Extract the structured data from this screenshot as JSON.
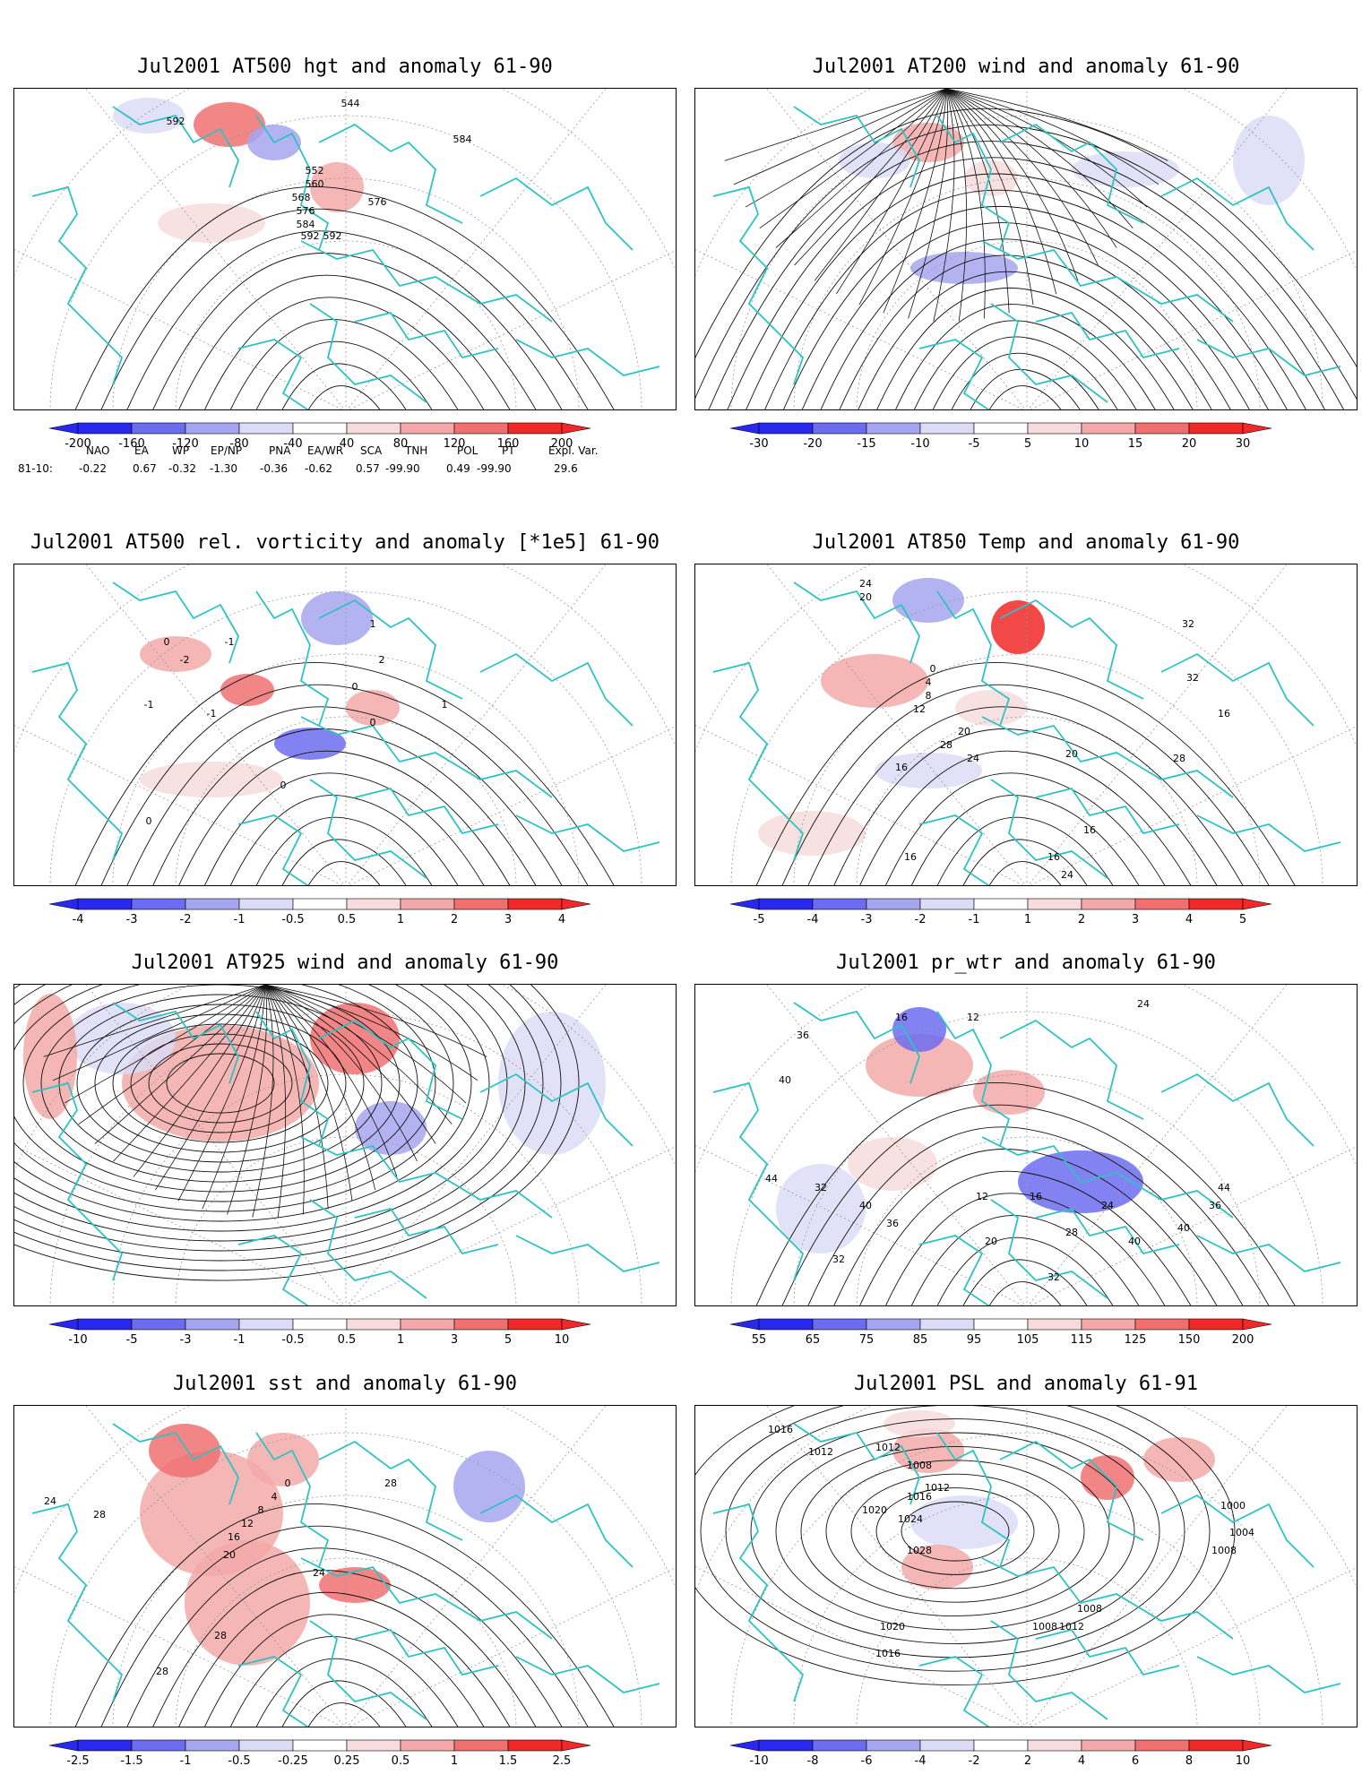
{
  "colors": {
    "coast": "#2ec3c3",
    "contour": "#111111",
    "blue_strong": "#2828f0",
    "blue_mid": "#6c6cf0",
    "blue_light": "#a6a6f0",
    "blue_pale": "#dcdcf6",
    "red_pale": "#f6dcdc",
    "red_light": "#f3a9a9",
    "red_mid": "#f07070",
    "red_strong": "#f02828"
  },
  "panels": [
    {
      "title": "Jul2001 AT500 hgt and anomaly 61-90",
      "colorbar": [
        "-200",
        "-160",
        "-120",
        "-80",
        "-40",
        "40",
        "80",
        "120",
        "160",
        "200"
      ],
      "contour_labels": [
        "592",
        "544",
        "552",
        "560",
        "568",
        "576",
        "584",
        "592",
        "576",
        "584",
        "592"
      ]
    },
    {
      "title": "Jul2001 AT200 wind and anomaly 61-90",
      "colorbar": [
        "-30",
        "-20",
        "-15",
        "-10",
        "-5",
        "5",
        "10",
        "15",
        "20",
        "30"
      ],
      "contour_labels": []
    },
    {
      "title": "Jul2001 AT500 rel. vorticity and anomaly [*1e5] 61-90",
      "colorbar": [
        "-4",
        "-3",
        "-2",
        "-1",
        "-0.5",
        "0.5",
        "1",
        "2",
        "3",
        "4"
      ],
      "contour_labels": [
        "0",
        "-1",
        "-2",
        "1",
        "2",
        "-1",
        "0",
        "-1",
        "0",
        "0",
        "0",
        "1"
      ]
    },
    {
      "title": "Jul2001 AT850 Temp and anomaly 61-90",
      "colorbar": [
        "-5",
        "-4",
        "-3",
        "-2",
        "-1",
        "1",
        "2",
        "3",
        "4",
        "5"
      ],
      "contour_labels": [
        "24",
        "20",
        "16",
        "12",
        "8",
        "4",
        "0",
        "20",
        "24",
        "28",
        "32",
        "16",
        "16",
        "16",
        "24",
        "20",
        "16",
        "28",
        "32"
      ]
    },
    {
      "title": "Jul2001 AT925 wind and anomaly 61-90",
      "colorbar": [
        "-10",
        "-5",
        "-3",
        "-1",
        "-0.5",
        "0.5",
        "1",
        "3",
        "5",
        "10"
      ],
      "contour_labels": []
    },
    {
      "title": "Jul2001 pr_wtr and anomaly 61-90",
      "colorbar": [
        "55",
        "65",
        "75",
        "85",
        "95",
        "105",
        "115",
        "125",
        "150",
        "200"
      ],
      "contour_labels": [
        "36",
        "40",
        "44",
        "32",
        "16",
        "12",
        "24",
        "40",
        "36",
        "32",
        "20",
        "16",
        "12",
        "24",
        "28",
        "40",
        "44",
        "36",
        "40",
        "32"
      ]
    },
    {
      "title": "Jul2001 sst and anomaly 61-90",
      "colorbar": [
        "-2.5",
        "-1.5",
        "-1",
        "-0.5",
        "-0.25",
        "0.25",
        "0.5",
        "1",
        "1.5",
        "2.5"
      ],
      "contour_labels": [
        "24",
        "28",
        "28",
        "20",
        "16",
        "12",
        "8",
        "4",
        "0",
        "24",
        "28",
        "28"
      ]
    },
    {
      "title": "Jul2001 PSL and anomaly 61-91",
      "colorbar": [
        "-10",
        "-8",
        "-6",
        "-4",
        "-2",
        "2",
        "4",
        "6",
        "8",
        "10"
      ],
      "contour_labels": [
        "1016",
        "1012",
        "1012",
        "1008",
        "1016",
        "1012",
        "1020",
        "1024",
        "1028",
        "1020",
        "1016",
        "1008",
        "1012",
        "1008",
        "1000",
        "1004",
        "1008"
      ]
    }
  ],
  "teleconnections": {
    "headers": [
      "NAO",
      "EA",
      "WP",
      "EP/NP",
      "PNA",
      "EA/WR",
      "SCA",
      "TNH",
      "POL",
      "PT",
      "Expl. Var."
    ],
    "row_label": "81-10:",
    "values": [
      "-0.22",
      "0.67",
      "-0.32",
      "-1.30",
      "-0.36",
      "-0.62",
      "0.57",
      "-99.90",
      "0.49",
      "-99.90",
      "29.6"
    ]
  }
}
